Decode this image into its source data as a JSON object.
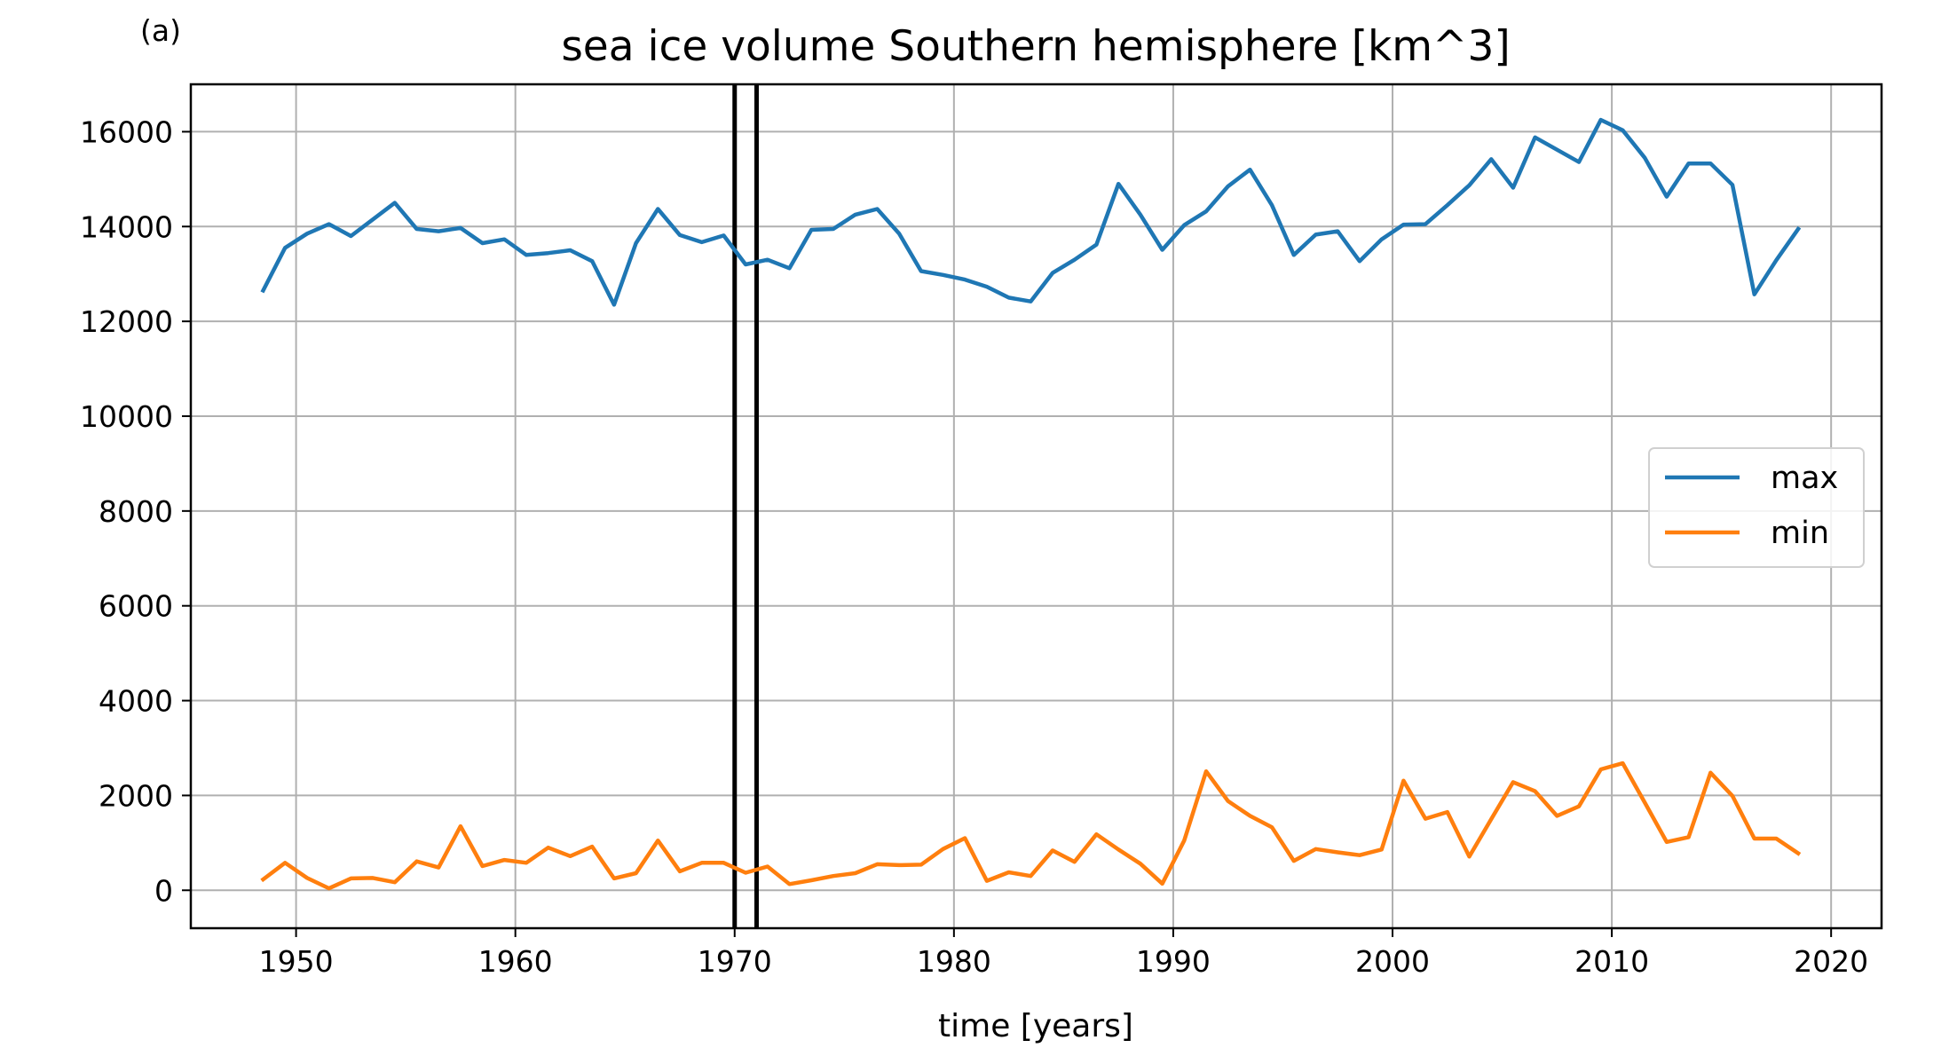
{
  "chart_data": {
    "type": "line",
    "panel_label": "(a)",
    "title": "sea ice volume Southern hemisphere [km^3]",
    "xlabel": "time [years]",
    "ylabel": "",
    "xlim": [
      1945.2,
      2022.3
    ],
    "ylim": [
      -800,
      17000
    ],
    "xticks": [
      1950,
      1960,
      1970,
      1980,
      1990,
      2000,
      2010,
      2020
    ],
    "yticks": [
      0,
      2000,
      4000,
      6000,
      8000,
      10000,
      12000,
      14000,
      16000
    ],
    "grid": true,
    "legend_position": "center-right",
    "vlines": [
      1970,
      1971
    ],
    "vline_color": "#000000",
    "series": [
      {
        "name": "max",
        "color": "#1f77b4",
        "x": [
          1948.5,
          1949.5,
          1950.5,
          1951.5,
          1952.5,
          1953.5,
          1954.5,
          1955.5,
          1956.5,
          1957.5,
          1958.5,
          1959.5,
          1960.5,
          1961.5,
          1962.5,
          1963.5,
          1964.5,
          1965.5,
          1966.5,
          1967.5,
          1968.5,
          1969.5,
          1970.5,
          1971.5,
          1972.5,
          1973.5,
          1974.5,
          1975.5,
          1976.5,
          1977.5,
          1978.5,
          1979.5,
          1980.5,
          1981.5,
          1982.5,
          1983.5,
          1984.5,
          1985.5,
          1986.5,
          1987.5,
          1988.5,
          1989.5,
          1990.5,
          1991.5,
          1992.5,
          1993.5,
          1994.5,
          1995.5,
          1996.5,
          1997.5,
          1998.5,
          1999.5,
          2000.5,
          2001.5,
          2002.5,
          2003.5,
          2004.5,
          2005.5,
          2006.5,
          2007.5,
          2008.5,
          2009.5,
          2010.5,
          2011.5,
          2012.5,
          2013.5,
          2014.5,
          2015.5,
          2016.5,
          2017.5,
          2018.5
        ],
        "values": [
          12650,
          13550,
          13850,
          14050,
          13800,
          14150,
          14500,
          13950,
          13900,
          13970,
          13650,
          13730,
          13400,
          13440,
          13500,
          13270,
          12350,
          13650,
          14370,
          13820,
          13670,
          13810,
          13200,
          13300,
          13120,
          13930,
          13950,
          14250,
          14370,
          13850,
          13060,
          12980,
          12880,
          12730,
          12500,
          12420,
          13020,
          13300,
          13620,
          14900,
          14250,
          13510,
          14030,
          14320,
          14850,
          15200,
          14450,
          13400,
          13830,
          13900,
          13270,
          13730,
          14040,
          14050,
          14450,
          14870,
          15420,
          14820,
          15880,
          15620,
          15360,
          16250,
          16030,
          15450,
          14630,
          15330,
          15330,
          14880,
          12570,
          13290,
          13950
        ]
      },
      {
        "name": "min",
        "color": "#ff7f0e",
        "x": [
          1948.5,
          1949.5,
          1950.5,
          1951.5,
          1952.5,
          1953.5,
          1954.5,
          1955.5,
          1956.5,
          1957.5,
          1958.5,
          1959.5,
          1960.5,
          1961.5,
          1962.5,
          1963.5,
          1964.5,
          1965.5,
          1966.5,
          1967.5,
          1968.5,
          1969.5,
          1970.5,
          1971.5,
          1972.5,
          1973.5,
          1974.5,
          1975.5,
          1976.5,
          1977.5,
          1978.5,
          1979.5,
          1980.5,
          1981.5,
          1982.5,
          1983.5,
          1984.5,
          1985.5,
          1986.5,
          1987.5,
          1988.5,
          1989.5,
          1990.5,
          1991.5,
          1992.5,
          1993.5,
          1994.5,
          1995.5,
          1996.5,
          1997.5,
          1998.5,
          1999.5,
          2000.5,
          2001.5,
          2002.5,
          2003.5,
          2004.5,
          2005.5,
          2006.5,
          2007.5,
          2008.5,
          2009.5,
          2010.5,
          2011.5,
          2012.5,
          2013.5,
          2014.5,
          2015.5,
          2016.5,
          2017.5,
          2018.5
        ],
        "values": [
          230,
          580,
          260,
          40,
          250,
          260,
          170,
          610,
          480,
          1350,
          510,
          640,
          580,
          900,
          720,
          920,
          250,
          360,
          1050,
          400,
          580,
          580,
          370,
          500,
          130,
          210,
          300,
          360,
          550,
          530,
          540,
          870,
          1100,
          200,
          380,
          300,
          840,
          600,
          1180,
          860,
          560,
          140,
          1050,
          2510,
          1880,
          1570,
          1330,
          620,
          870,
          800,
          740,
          860,
          2310,
          1510,
          1650,
          710,
          1500,
          2280,
          2090,
          1570,
          1770,
          2550,
          2680,
          1850,
          1020,
          1120,
          2480,
          1990,
          1090,
          1090,
          780
        ]
      }
    ]
  }
}
